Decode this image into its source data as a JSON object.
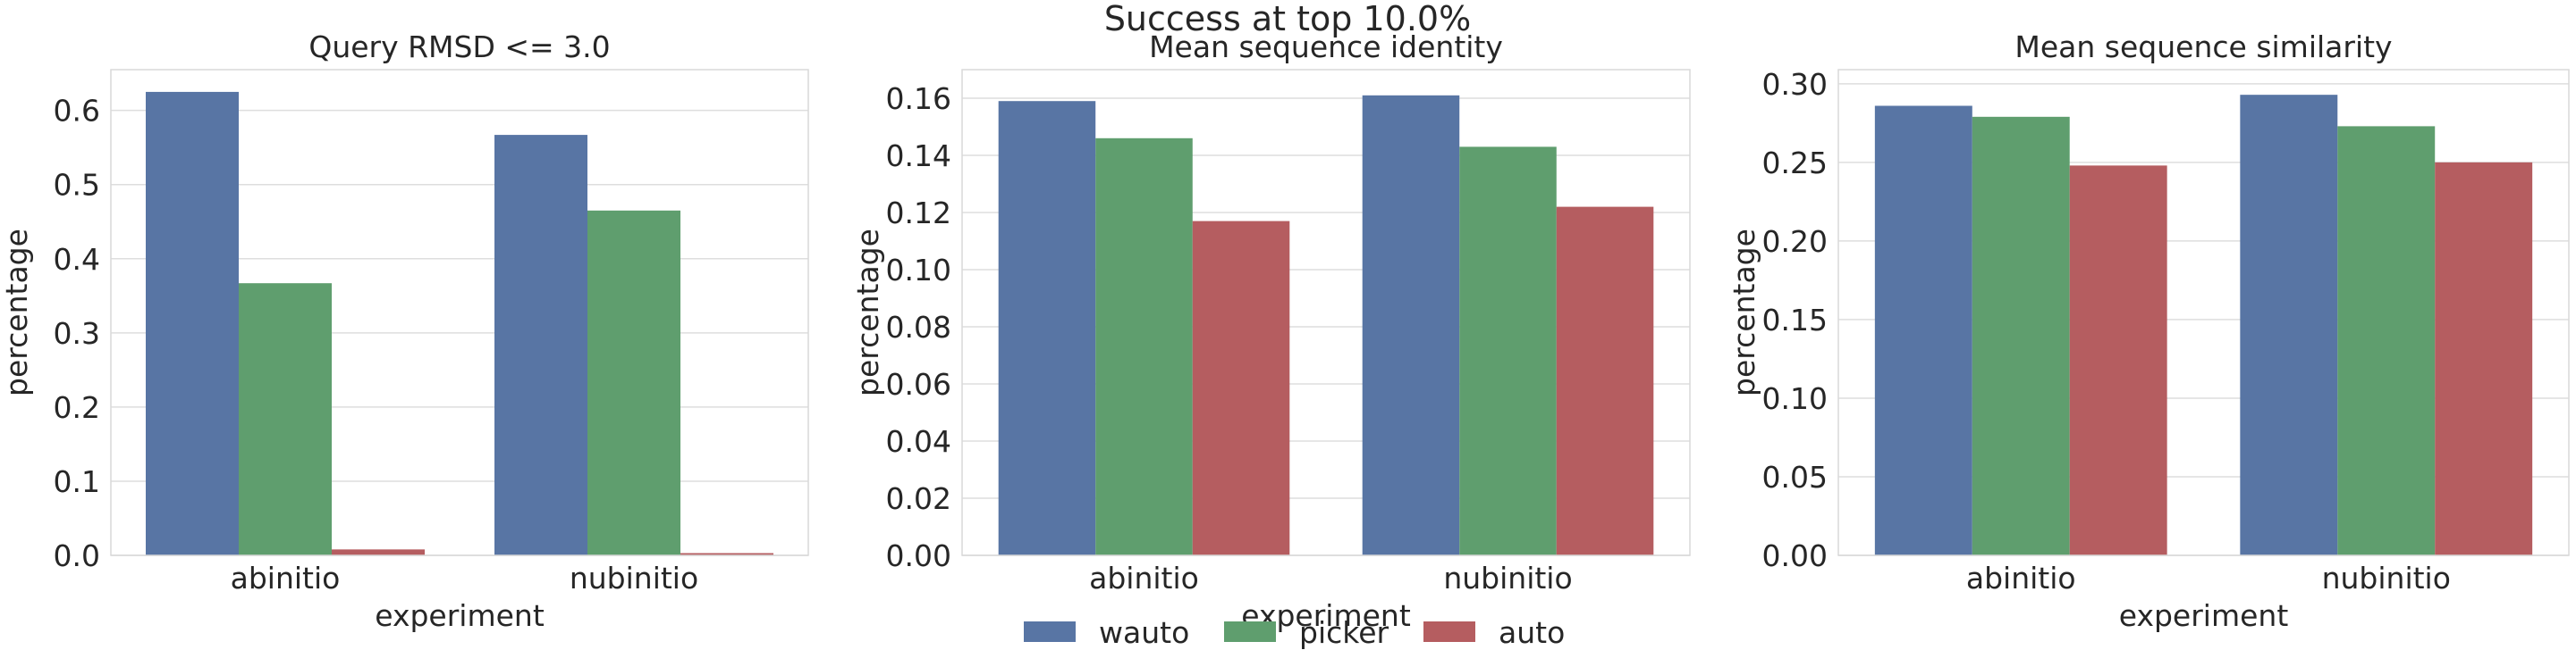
{
  "figure_title": "Success at top 10.0%",
  "chart_data": [
    {
      "type": "bar",
      "title": "Query RMSD <= 3.0",
      "xlabel": "experiment",
      "ylabel": "percentage",
      "categories": [
        "abinitio",
        "nubinitio"
      ],
      "ylim": [
        0,
        0.655
      ],
      "yticks": [
        0.0,
        0.1,
        0.2,
        0.3,
        0.4,
        0.5,
        0.6
      ],
      "tick_format": 1,
      "grid": true,
      "series": [
        {
          "name": "wauto",
          "values": [
            0.625,
            0.567
          ]
        },
        {
          "name": "picker",
          "values": [
            0.367,
            0.465
          ]
        },
        {
          "name": "auto",
          "values": [
            0.008,
            0.003
          ]
        }
      ]
    },
    {
      "type": "bar",
      "title": "Mean sequence identity",
      "xlabel": "experiment",
      "ylabel": "percentage",
      "categories": [
        "abinitio",
        "nubinitio"
      ],
      "ylim": [
        0,
        0.17
      ],
      "yticks": [
        0.0,
        0.02,
        0.04,
        0.06,
        0.08,
        0.1,
        0.12,
        0.14,
        0.16
      ],
      "tick_format": 2,
      "grid": true,
      "series": [
        {
          "name": "wauto",
          "values": [
            0.159,
            0.161
          ]
        },
        {
          "name": "picker",
          "values": [
            0.146,
            0.143
          ]
        },
        {
          "name": "auto",
          "values": [
            0.117,
            0.122
          ]
        }
      ]
    },
    {
      "type": "bar",
      "title": "Mean sequence similarity",
      "xlabel": "experiment",
      "ylabel": "percentage",
      "categories": [
        "abinitio",
        "nubinitio"
      ],
      "ylim": [
        0,
        0.309
      ],
      "yticks": [
        0.0,
        0.05,
        0.1,
        0.15,
        0.2,
        0.25,
        0.3
      ],
      "tick_format": 2,
      "grid": true,
      "series": [
        {
          "name": "wauto",
          "values": [
            0.286,
            0.293
          ]
        },
        {
          "name": "picker",
          "values": [
            0.279,
            0.273
          ]
        },
        {
          "name": "auto",
          "values": [
            0.248,
            0.25
          ]
        }
      ]
    }
  ],
  "legend": {
    "placement": "bottom-center",
    "entries": [
      "wauto",
      "picker",
      "auto"
    ]
  },
  "colors": {
    "wauto": "#5875a4",
    "picker": "#5f9e6e",
    "auto": "#b55d60",
    "grid": "#dedede",
    "axes_edge": "#d9d9d9",
    "text": "#262626"
  }
}
